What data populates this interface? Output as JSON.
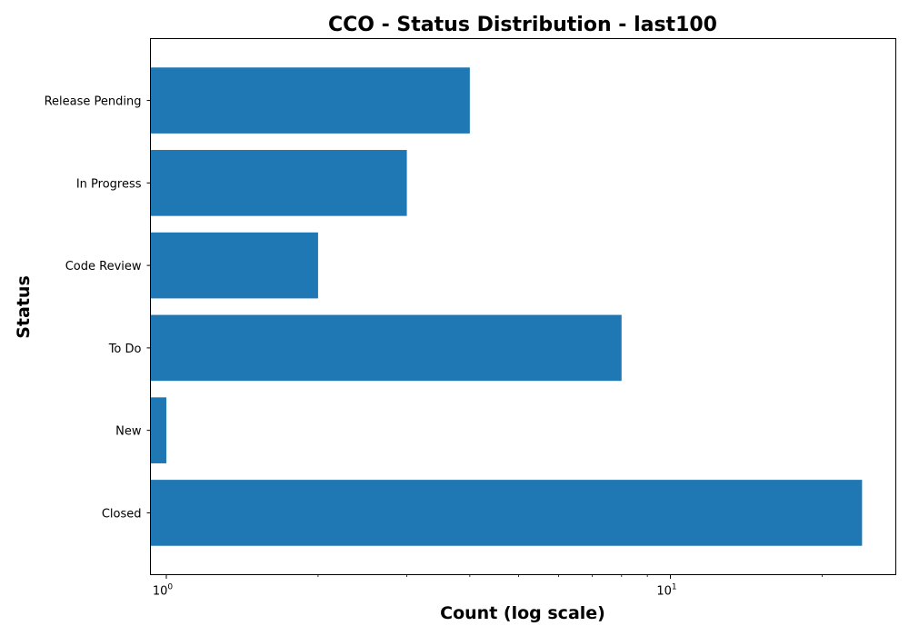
{
  "chart_data": {
    "type": "bar",
    "orientation": "horizontal",
    "title": "CCO - Status Distribution - last100",
    "xlabel": "Count (log scale)",
    "ylabel": "Status",
    "x_scale": "log",
    "xlim": [
      0.93,
      28
    ],
    "x_major_ticks": [
      {
        "value": 1,
        "base": "10",
        "exponent": "0"
      },
      {
        "value": 10,
        "base": "10",
        "exponent": "1"
      }
    ],
    "x_minor_ticks": [
      2,
      3,
      4,
      5,
      6,
      7,
      8,
      9,
      20
    ],
    "categories": [
      "Closed",
      "New",
      "To Do",
      "Code Review",
      "In Progress",
      "Release Pending"
    ],
    "values": [
      24,
      1,
      8,
      2,
      3,
      4
    ],
    "bar_color": "#1f77b4",
    "grid": false,
    "legend": "none"
  }
}
